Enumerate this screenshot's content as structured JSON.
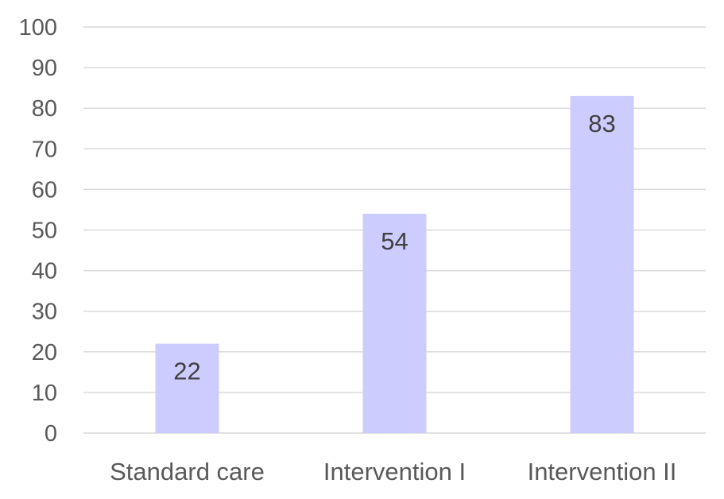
{
  "chart_data": {
    "type": "bar",
    "categories": [
      "Standard care",
      "Intervention I",
      "Intervention II"
    ],
    "values": [
      22,
      54,
      83
    ],
    "title": "",
    "xlabel": "",
    "ylabel": "",
    "ylim": [
      0,
      100
    ],
    "yticks": [
      0,
      10,
      20,
      30,
      40,
      50,
      60,
      70,
      80,
      90,
      100
    ],
    "grid": true,
    "legend": "none",
    "data_labels": true,
    "bar_color": "#ccccff",
    "gridline_color": "#d9d9d9",
    "tick_label_color": "#595959",
    "data_label_color": "#404040"
  }
}
